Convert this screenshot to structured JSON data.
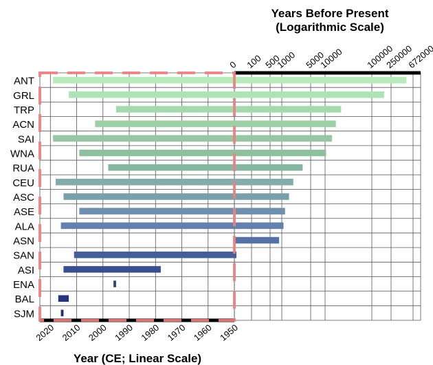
{
  "chart_data": {
    "type": "bar",
    "orientation": "horizontal",
    "title_top": [
      "Years Before Present",
      "(Logarithmic Scale)"
    ],
    "xlabel_bottom": "Year (CE; Linear Scale)",
    "categories": [
      "ANT",
      "GRL",
      "TRP",
      "ACN",
      "SAI",
      "WNA",
      "RUA",
      "CEU",
      "ASC",
      "ASE",
      "ALA",
      "ASN",
      "SAN",
      "ASI",
      "ENA",
      "BAL",
      "SJM"
    ],
    "bottom_axis": {
      "scale": "linear",
      "reversed": true,
      "range": [
        2024,
        1950
      ],
      "ticks": [
        2020,
        2010,
        2000,
        1990,
        1980,
        1970,
        1960,
        1950
      ]
    },
    "top_axis": {
      "scale": "log",
      "range": [
        0,
        672000
      ],
      "ticks": [
        "0",
        "100",
        "500",
        "1000",
        "5000",
        "10000",
        "100000",
        "250000",
        "672000"
      ]
    },
    "bars": [
      {
        "region": "ANT",
        "end_ce": 2019,
        "start_bp": 500000,
        "color": "#b7ebbb"
      },
      {
        "region": "GRL",
        "end_ce": 2013,
        "start_bp": 180000,
        "color": "#aee3b4"
      },
      {
        "region": "TRP",
        "end_ce": 1995,
        "start_bp": 22000,
        "color": "#a4d9ad"
      },
      {
        "region": "ACN",
        "end_ce": 2003,
        "start_bp": 17000,
        "color": "#9ecfa7"
      },
      {
        "region": "SAI",
        "end_ce": 2019,
        "start_bp": 14000,
        "color": "#97c7a2"
      },
      {
        "region": "WNA",
        "end_ce": 2009,
        "start_bp": 10500,
        "color": "#90bfa0"
      },
      {
        "region": "RUA",
        "end_ce": 1998,
        "start_bp": 3200,
        "color": "#89b5a3"
      },
      {
        "region": "CEU",
        "end_ce": 2018,
        "start_bp": 1900,
        "color": "#82abaa"
      },
      {
        "region": "ASC",
        "end_ce": 2015,
        "start_bp": 1500,
        "color": "#78a0ac"
      },
      {
        "region": "ASE",
        "end_ce": 2009,
        "start_bp": 1200,
        "color": "#6e90ac"
      },
      {
        "region": "ALA",
        "end_ce": 2016,
        "start_bp": 1100,
        "color": "#6381aa"
      },
      {
        "region": "ASN",
        "end_ce": 1950,
        "start_bp": 850,
        "color": "#5572a6"
      },
      {
        "region": "SAN",
        "end_ce": 2011,
        "start_bp": 12,
        "color": "#445e9a"
      },
      {
        "region": "ASI",
        "end_ce": 2015,
        "start_bp": null,
        "start_ce": 1978,
        "color": "#394f8f"
      },
      {
        "region": "ENA",
        "end_ce": 1996,
        "start_bp": null,
        "start_ce": 1995,
        "color": "#2d3f87"
      },
      {
        "region": "BAL",
        "end_ce": 2017,
        "start_bp": null,
        "start_ce": 2013,
        "color": "#243580"
      },
      {
        "region": "SJM",
        "end_ce": 2016,
        "start_bp": null,
        "start_ce": 2015,
        "color": "#1e2e7a"
      }
    ],
    "highlight_box_color": "#f08080",
    "grid": true
  }
}
